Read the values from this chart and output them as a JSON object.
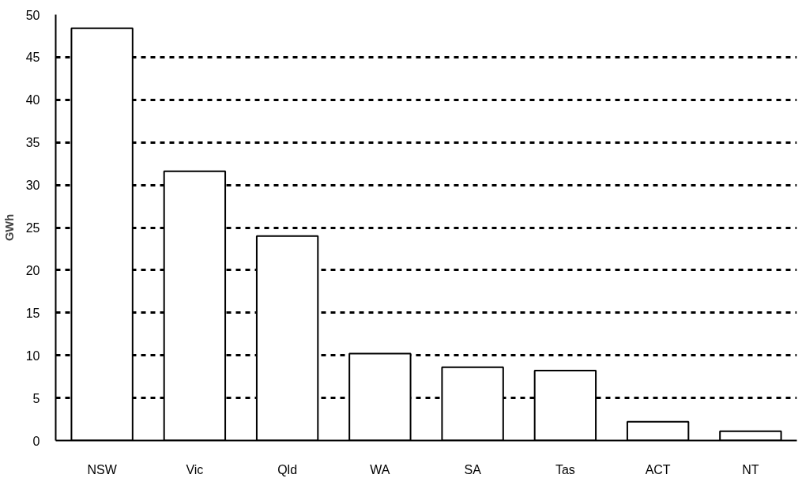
{
  "chart_data": {
    "type": "bar",
    "ylabel": "GWh",
    "categories": [
      "NSW",
      "Vic",
      "Qld",
      "WA",
      "SA",
      "Tas",
      "ACT",
      "NT"
    ],
    "values": [
      48.4,
      31.6,
      24.0,
      10.2,
      8.6,
      8.2,
      2.2,
      1.1
    ],
    "color": "#ffffff",
    "ylim": [
      0,
      50
    ],
    "yticks": [
      0,
      5,
      10,
      15,
      20,
      25,
      30,
      35,
      40,
      45,
      50
    ],
    "grid": "y",
    "line_style": "dashed"
  }
}
